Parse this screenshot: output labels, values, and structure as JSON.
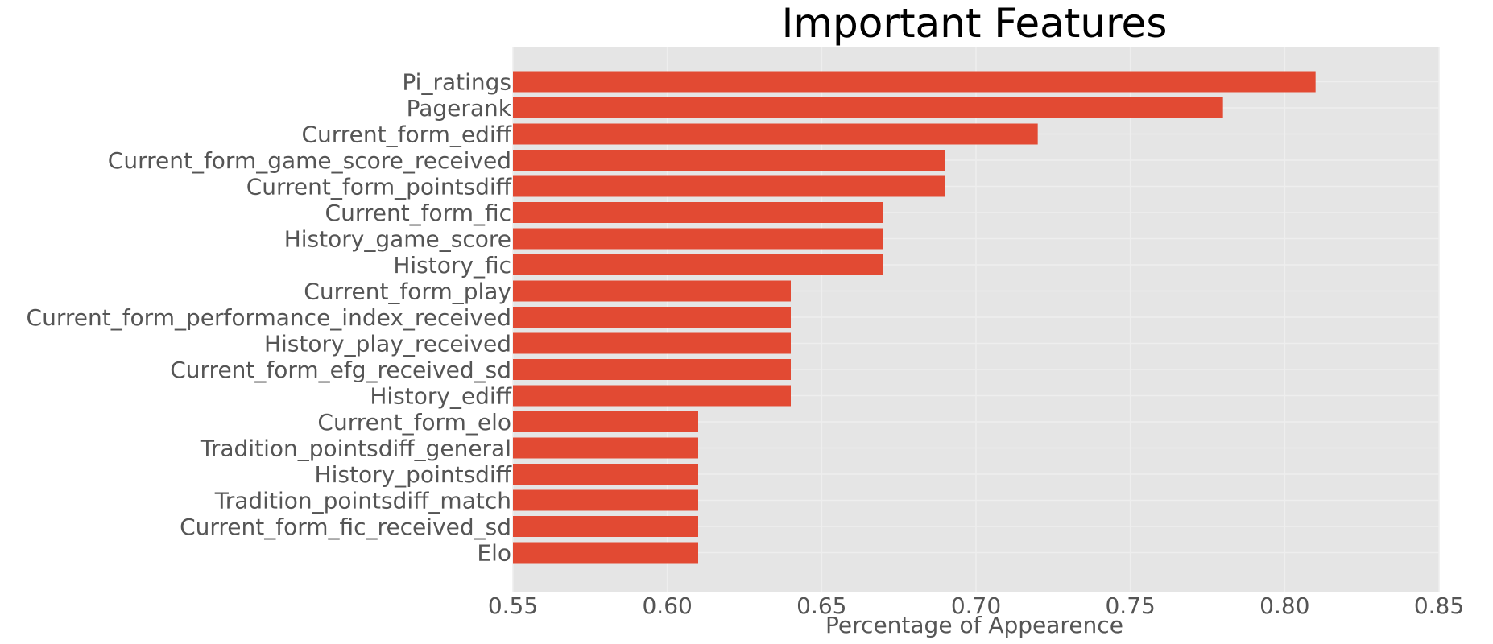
{
  "chart_data": {
    "type": "bar",
    "orientation": "horizontal",
    "title": "Important Features",
    "xlabel": "Percentage of Appearence",
    "ylabel": "",
    "xlim": [
      0.55,
      0.85
    ],
    "xticks": [
      "0.55",
      "0.60",
      "0.65",
      "0.70",
      "0.75",
      "0.80",
      "0.85"
    ],
    "grid": true,
    "legend": "none",
    "categories": [
      "Pi_ratings",
      "Pagerank",
      "Current_form_ediff",
      "Current_form_game_score_received",
      "Current_form_pointsdiff",
      "Current_form_fic",
      "History_game_score",
      "History_fic",
      "Current_form_play",
      "Current_form_performance_index_received",
      "History_play_received",
      "Current_form_efg_received_sd",
      "History_ediff",
      "Current_form_elo",
      "Tradition_pointsdiff_general",
      "History_pointsdiff",
      "Tradition_pointsdiff_match",
      "Current_form_fic_received_sd",
      "Elo"
    ],
    "values": [
      0.81,
      0.78,
      0.72,
      0.69,
      0.69,
      0.67,
      0.67,
      0.67,
      0.64,
      0.64,
      0.64,
      0.64,
      0.64,
      0.61,
      0.61,
      0.61,
      0.61,
      0.61,
      0.61
    ],
    "colors": {
      "bar": "#E24A33",
      "plot_background": "#E5E5E5",
      "grid": "#EEEEEE",
      "text": "#555555"
    }
  }
}
